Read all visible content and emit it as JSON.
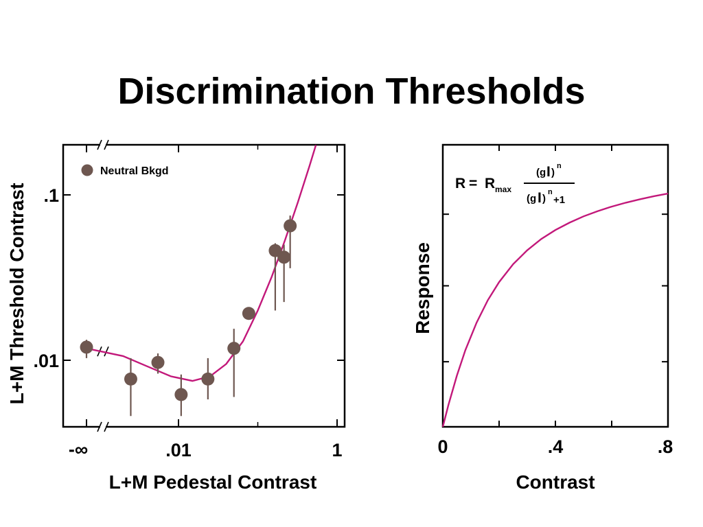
{
  "slide": {
    "title": "Discrimination Thresholds"
  },
  "colors": {
    "curve": "#c2187a",
    "marker": "#6e5750",
    "axis": "#000000"
  },
  "chart_data": [
    {
      "type": "scatter",
      "xlabel": "L+M Pedestal Contrast",
      "ylabel": "L+M Threshold Contrast",
      "x_scale": "log",
      "y_scale": "log",
      "x_ticks": [
        {
          "value": "-inf",
          "label": "-∞"
        },
        {
          "value": 0.01,
          "label": ".01"
        },
        {
          "value": 1,
          "label": "1"
        }
      ],
      "y_ticks": [
        {
          "value": 0.1,
          "label": ".1"
        },
        {
          "value": 0.01,
          "label": ".01"
        }
      ],
      "xlim": [
        0.0012,
        1
      ],
      "ylim": [
        0.0042,
        0.2
      ],
      "axis_breaks": true,
      "legend": {
        "label": "Neutral Bkgd",
        "position": "top-left"
      },
      "series": [
        {
          "name": "Neutral Bkgd",
          "points": [
            {
              "x": "-inf",
              "y": 0.012,
              "ylo": 0.0103,
              "yhi": 0.0133
            },
            {
              "x": 0.0025,
              "y": 0.0077,
              "ylo": 0.0046,
              "yhi": 0.0103
            },
            {
              "x": 0.0055,
              "y": 0.0097,
              "ylo": 0.0083,
              "yhi": 0.011
            },
            {
              "x": 0.0108,
              "y": 0.0062,
              "ylo": 0.0046,
              "yhi": 0.0082
            },
            {
              "x": 0.0235,
              "y": 0.0077,
              "ylo": 0.0058,
              "yhi": 0.0103
            },
            {
              "x": 0.05,
              "y": 0.0118,
              "ylo": 0.006,
              "yhi": 0.0155
            },
            {
              "x": 0.077,
              "y": 0.0192,
              "ylo": 0.0185,
              "yhi": 0.02
            },
            {
              "x": 0.166,
              "y": 0.046,
              "ylo": 0.02,
              "yhi": 0.051
            },
            {
              "x": 0.214,
              "y": 0.042,
              "ylo": 0.0225,
              "yhi": 0.05
            },
            {
              "x": 0.256,
              "y": 0.065,
              "ylo": 0.036,
              "yhi": 0.075
            }
          ]
        }
      ],
      "fit_curve": {
        "points": [
          {
            "x": "-inf",
            "y": 0.0118
          },
          {
            "x": 0.002,
            "y": 0.0106
          },
          {
            "x": 0.004,
            "y": 0.0092
          },
          {
            "x": 0.008,
            "y": 0.008
          },
          {
            "x": 0.015,
            "y": 0.0075
          },
          {
            "x": 0.025,
            "y": 0.008
          },
          {
            "x": 0.04,
            "y": 0.0095
          },
          {
            "x": 0.065,
            "y": 0.013
          },
          {
            "x": 0.1,
            "y": 0.02
          },
          {
            "x": 0.15,
            "y": 0.032
          },
          {
            "x": 0.22,
            "y": 0.053
          },
          {
            "x": 0.32,
            "y": 0.09
          },
          {
            "x": 0.45,
            "y": 0.15
          },
          {
            "x": 0.54,
            "y": 0.2
          }
        ]
      }
    },
    {
      "type": "line",
      "xlabel": "Contrast",
      "ylabel": "Response",
      "x_ticks": [
        {
          "value": 0,
          "label": "0"
        },
        {
          "value": 0.4,
          "label": ".4"
        },
        {
          "value": 0.8,
          "label": ".8"
        }
      ],
      "xlim": [
        0,
        0.8
      ],
      "ylim": [
        0,
        1.3
      ],
      "y_ticks_unlabeled": [
        0.3,
        0.65,
        0.98,
        1.3
      ],
      "formula": {
        "lhs": "R",
        "eq": "=",
        "r": "R",
        "r_sub": "max",
        "num_paren_open": "(",
        "num_g": "g",
        "num_paren_close": ")",
        "num_I": "I",
        "num_sup": "n",
        "den_plus": "+1"
      },
      "series": [
        {
          "x": [
            0,
            0.02,
            0.05,
            0.08,
            0.12,
            0.16,
            0.2,
            0.25,
            0.3,
            0.35,
            0.4,
            0.45,
            0.5,
            0.55,
            0.6,
            0.65,
            0.7,
            0.75,
            0.8
          ],
          "y": [
            0,
            0.101,
            0.236,
            0.353,
            0.48,
            0.584,
            0.667,
            0.75,
            0.814,
            0.866,
            0.907,
            0.941,
            0.97,
            0.994,
            1.015,
            1.033,
            1.049,
            1.063,
            1.075
          ]
        }
      ]
    }
  ]
}
